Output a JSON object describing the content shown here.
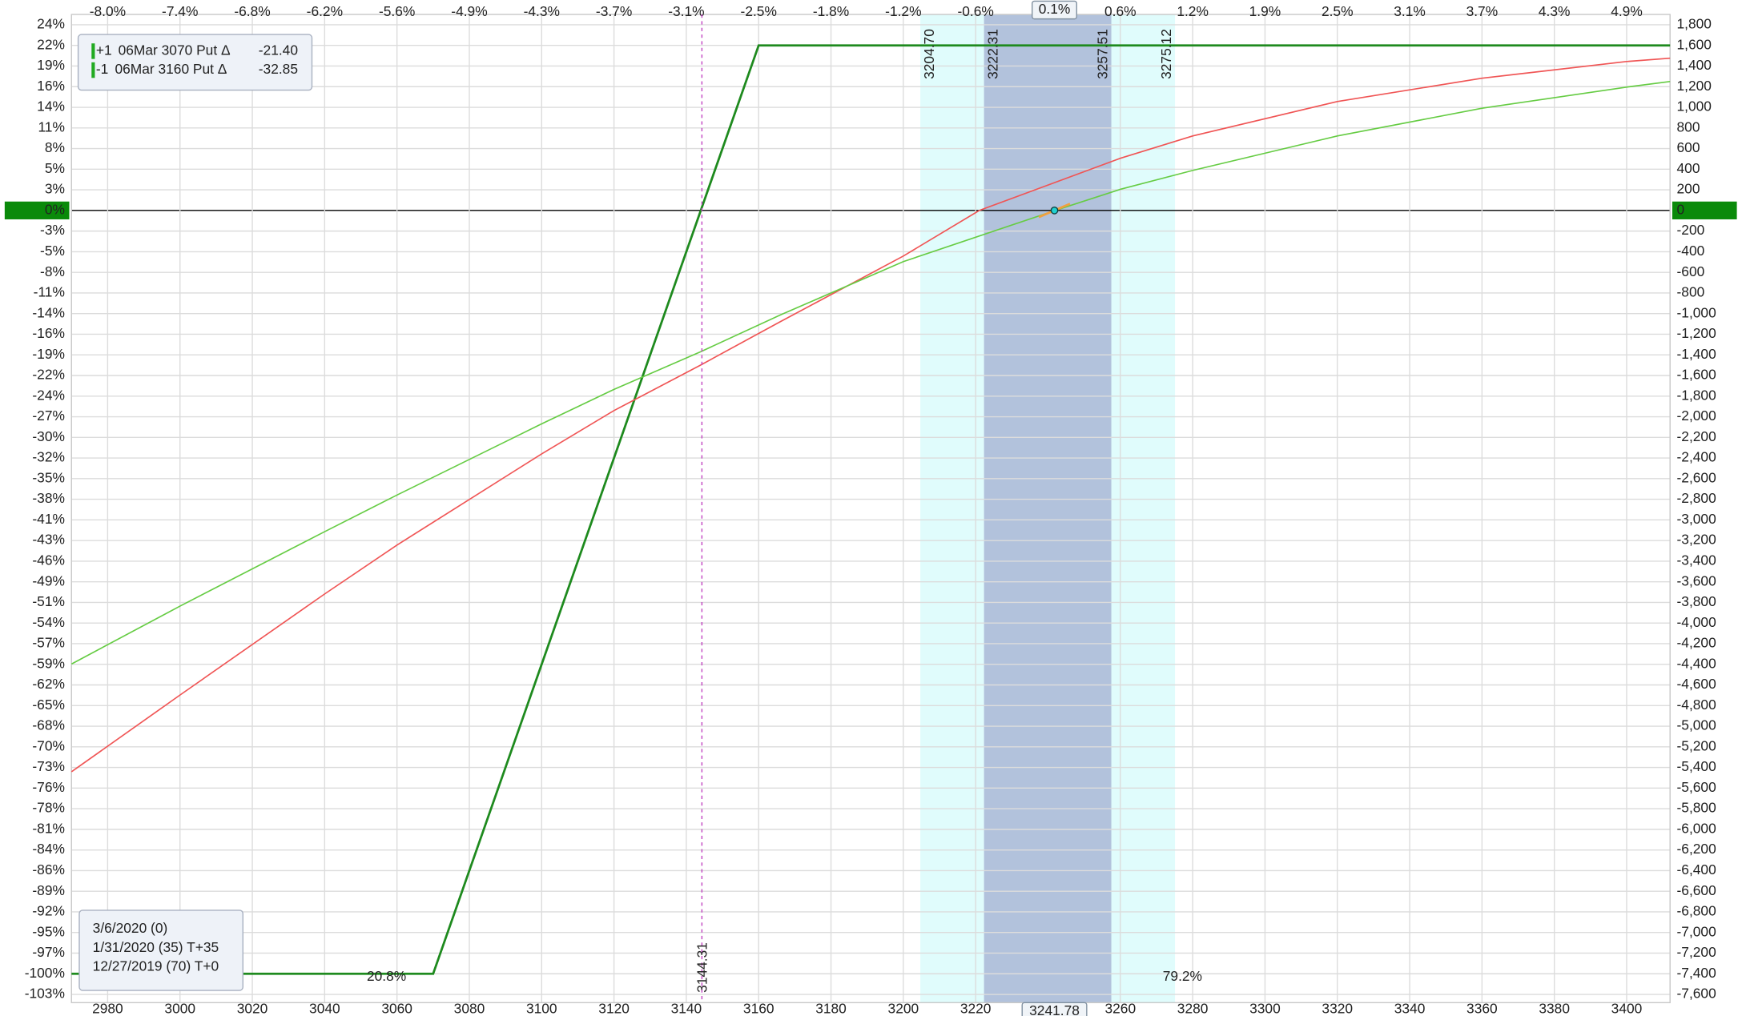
{
  "chart_data": {
    "type": "line",
    "xlim": [
      2970,
      3412
    ],
    "ylim": [
      -7680,
      1900
    ],
    "grid": true,
    "xticks": [
      2980,
      3000,
      3020,
      3040,
      3060,
      3080,
      3100,
      3120,
      3140,
      3160,
      3180,
      3200,
      3220,
      3260,
      3280,
      3300,
      3320,
      3340,
      3360,
      3380,
      3400
    ],
    "x2ticks": [
      {
        "value": 2980,
        "label": "-8.0%"
      },
      {
        "value": 3000,
        "label": "-7.4%"
      },
      {
        "value": 3020,
        "label": "-6.8%"
      },
      {
        "value": 3040,
        "label": "-6.2%"
      },
      {
        "value": 3060,
        "label": "-5.6%"
      },
      {
        "value": 3080,
        "label": "-4.9%"
      },
      {
        "value": 3100,
        "label": "-4.3%"
      },
      {
        "value": 3120,
        "label": "-3.7%"
      },
      {
        "value": 3140,
        "label": "-3.1%"
      },
      {
        "value": 3160,
        "label": "-2.5%"
      },
      {
        "value": 3180,
        "label": "-1.8%"
      },
      {
        "value": 3200,
        "label": "-1.2%"
      },
      {
        "value": 3220,
        "label": "-0.6%"
      },
      {
        "value": 3260,
        "label": "0.6%"
      },
      {
        "value": 3280,
        "label": "1.2%"
      },
      {
        "value": 3300,
        "label": "1.9%"
      },
      {
        "value": 3320,
        "label": "2.5%"
      },
      {
        "value": 3340,
        "label": "3.1%"
      },
      {
        "value": 3360,
        "label": "3.7%"
      },
      {
        "value": 3380,
        "label": "4.3%"
      },
      {
        "value": 3400,
        "label": "4.9%"
      }
    ],
    "yticks": [
      {
        "value": 1800,
        "label": "1,800"
      },
      {
        "value": 1600,
        "label": "1,600"
      },
      {
        "value": 1400,
        "label": "1,400"
      },
      {
        "value": 1200,
        "label": "1,200"
      },
      {
        "value": 1000,
        "label": "1,000"
      },
      800,
      600,
      400,
      200,
      0,
      -200,
      -400,
      -600,
      -800,
      {
        "value": -1000,
        "label": "-1,000"
      },
      {
        "value": -1200,
        "label": "-1,200"
      },
      {
        "value": -1400,
        "label": "-1,400"
      },
      {
        "value": -1600,
        "label": "-1,600"
      },
      {
        "value": -1800,
        "label": "-1,800"
      },
      {
        "value": -2000,
        "label": "-2,000"
      },
      {
        "value": -2200,
        "label": "-2,200"
      },
      {
        "value": -2400,
        "label": "-2,400"
      },
      {
        "value": -2600,
        "label": "-2,600"
      },
      {
        "value": -2800,
        "label": "-2,800"
      },
      {
        "value": -3000,
        "label": "-3,000"
      },
      {
        "value": -3200,
        "label": "-3,200"
      },
      {
        "value": -3400,
        "label": "-3,400"
      },
      {
        "value": -3600,
        "label": "-3,600"
      },
      {
        "value": -3800,
        "label": "-3,800"
      },
      {
        "value": -4000,
        "label": "-4,000"
      },
      {
        "value": -4200,
        "label": "-4,200"
      },
      {
        "value": -4400,
        "label": "-4,400"
      },
      {
        "value": -4600,
        "label": "-4,600"
      },
      {
        "value": -4800,
        "label": "-4,800"
      },
      {
        "value": -5000,
        "label": "-5,000"
      },
      {
        "value": -5200,
        "label": "-5,200"
      },
      {
        "value": -5400,
        "label": "-5,400"
      },
      {
        "value": -5600,
        "label": "-5,600"
      },
      {
        "value": -5800,
        "label": "-5,800"
      },
      {
        "value": -6000,
        "label": "-6,000"
      },
      {
        "value": -6200,
        "label": "-6,200"
      },
      {
        "value": -6400,
        "label": "-6,400"
      },
      {
        "value": -6600,
        "label": "-6,600"
      },
      {
        "value": -6800,
        "label": "-6,800"
      },
      {
        "value": -7000,
        "label": "-7,000"
      },
      {
        "value": -7200,
        "label": "-7,200"
      },
      {
        "value": -7400,
        "label": "-7,400"
      },
      {
        "value": -7600,
        "label": "-7,600"
      }
    ],
    "y_pct_ticks": [
      {
        "value": 1800,
        "label": "24%"
      },
      {
        "value": 1600,
        "label": "22%"
      },
      {
        "value": 1400,
        "label": "19%"
      },
      {
        "value": 1200,
        "label": "16%"
      },
      {
        "value": 1000,
        "label": "14%"
      },
      {
        "value": 800,
        "label": "11%"
      },
      {
        "value": 600,
        "label": "8%"
      },
      {
        "value": 400,
        "label": "5%"
      },
      {
        "value": 200,
        "label": "3%"
      },
      {
        "value": 0,
        "label": "0%"
      },
      {
        "value": -200,
        "label": "-3%"
      },
      {
        "value": -400,
        "label": "-5%"
      },
      {
        "value": -600,
        "label": "-8%"
      },
      {
        "value": -800,
        "label": "-11%"
      },
      {
        "value": -1000,
        "label": "-14%"
      },
      {
        "value": -1200,
        "label": "-16%"
      },
      {
        "value": -1400,
        "label": "-19%"
      },
      {
        "value": -1600,
        "label": "-22%"
      },
      {
        "value": -1800,
        "label": "-24%"
      },
      {
        "value": -2000,
        "label": "-27%"
      },
      {
        "value": -2200,
        "label": "-30%"
      },
      {
        "value": -2400,
        "label": "-32%"
      },
      {
        "value": -2600,
        "label": "-35%"
      },
      {
        "value": -2800,
        "label": "-38%"
      },
      {
        "value": -3000,
        "label": "-41%"
      },
      {
        "value": -3200,
        "label": "-43%"
      },
      {
        "value": -3400,
        "label": "-46%"
      },
      {
        "value": -3600,
        "label": "-49%"
      },
      {
        "value": -3800,
        "label": "-51%"
      },
      {
        "value": -4000,
        "label": "-54%"
      },
      {
        "value": -4200,
        "label": "-57%"
      },
      {
        "value": -4400,
        "label": "-59%"
      },
      {
        "value": -4600,
        "label": "-62%"
      },
      {
        "value": -4800,
        "label": "-65%"
      },
      {
        "value": -5000,
        "label": "-68%"
      },
      {
        "value": -5200,
        "label": "-70%"
      },
      {
        "value": -5400,
        "label": "-73%"
      },
      {
        "value": -5600,
        "label": "-76%"
      },
      {
        "value": -5800,
        "label": "-78%"
      },
      {
        "value": -6000,
        "label": "-81%"
      },
      {
        "value": -6200,
        "label": "-84%"
      },
      {
        "value": -6400,
        "label": "-86%"
      },
      {
        "value": -6600,
        "label": "-89%"
      },
      {
        "value": -6800,
        "label": "-92%"
      },
      {
        "value": -7000,
        "label": "-95%"
      },
      {
        "value": -7200,
        "label": "-97%"
      },
      {
        "value": -7400,
        "label": "-100%"
      },
      {
        "value": -7600,
        "label": "-103%"
      }
    ],
    "series": [
      {
        "name": "3/6/2020 (0)",
        "color": "#1e8a1e",
        "x": [
          2970,
          3070,
          3160,
          3412
        ],
        "values": [
          -7400,
          -7400,
          1600,
          1600
        ]
      },
      {
        "name": "1/31/2020 (35) T+35",
        "color": "#f05555",
        "x": [
          2970,
          3000,
          3040,
          3060,
          3100,
          3120,
          3144,
          3166,
          3200,
          3221,
          3260,
          3280,
          3320,
          3360,
          3400,
          3412
        ],
        "values": [
          -5442,
          -4698,
          -3718,
          -3244,
          -2360,
          -1940,
          -1498,
          -1078,
          -442,
          0,
          506,
          722,
          1056,
          1282,
          1444,
          1476
        ]
      },
      {
        "name": "12/27/2019 (70) T+0",
        "color": "#66cc44",
        "x": [
          2970,
          3000,
          3040,
          3060,
          3100,
          3120,
          3144,
          3166,
          3200,
          3242,
          3260,
          3280,
          3320,
          3360,
          3400,
          3412
        ],
        "values": [
          -4397,
          -3836,
          -3114,
          -2759,
          -2069,
          -1735,
          -1369,
          -1013,
          -496,
          0,
          205,
          388,
          722,
          991,
          1196,
          1250
        ]
      }
    ],
    "positions": [
      {
        "qty": "+1",
        "description": "06Mar 3070 Put Δ",
        "delta": {
          "value": -21.4,
          "label": "-21.40"
        },
        "color": "#3b4fd8"
      },
      {
        "qty": "-1",
        "description": "06Mar 3160 Put Δ",
        "delta": -32.85,
        "color": "#e03a3a"
      }
    ],
    "bands": [
      {
        "from": {
          "value": 3204.7,
          "label": "3204.70"
        },
        "to": {
          "value": 3275.12,
          "label": "3275.12"
        },
        "color": "#e0fcfc"
      },
      {
        "from": 3222.31,
        "to": 3257.51,
        "color": "#b2c2dc"
      }
    ],
    "breakeven": 3144.31,
    "current_price": 3241.78,
    "current_change": "0.1%",
    "probability_labels": [
      "20.8%",
      "79.2%"
    ]
  }
}
